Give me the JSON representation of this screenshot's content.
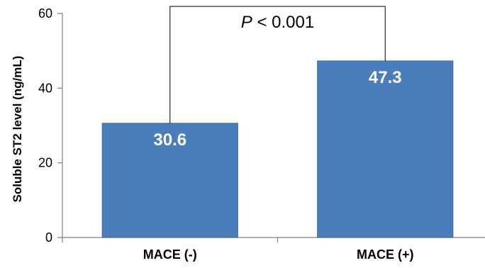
{
  "chart_data": {
    "type": "bar",
    "categories": [
      "MACE (-)",
      "MACE (+)"
    ],
    "values": [
      30.6,
      47.3
    ],
    "data_labels": [
      "30.6",
      "47.3"
    ],
    "ylabel": "Soluble ST2 level (ng/mL)",
    "ylim": [
      0,
      60
    ],
    "yticks": [
      0,
      20,
      40,
      60
    ],
    "ytick_labels": [
      "0",
      "20",
      "40",
      "60"
    ],
    "bar_color": "#4a7ebb",
    "grid": false,
    "annotation": {
      "italic_part": "P",
      "rest": " < 0.001",
      "bracket_value": 60
    }
  }
}
